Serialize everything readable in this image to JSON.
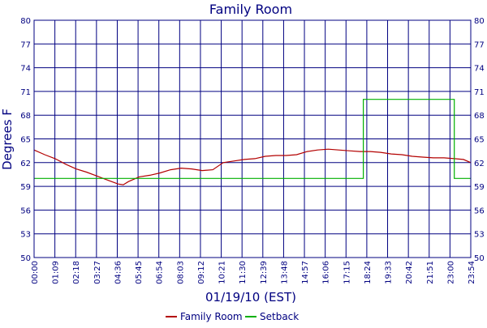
{
  "chart_data": {
    "type": "line",
    "title": "Family Room",
    "xlabel": "01/19/10 (EST)",
    "ylabel": "Degrees F",
    "ylim": [
      50,
      80
    ],
    "xlim": [
      "00:00",
      "23:54"
    ],
    "grid": true,
    "legend_position": "bottom",
    "y_ticks": [
      "50",
      "53",
      "56",
      "59",
      "62",
      "65",
      "68",
      "71",
      "74",
      "77",
      "80"
    ],
    "x_ticks": [
      "00:00",
      "01:09",
      "02:18",
      "03:27",
      "04:36",
      "05:45",
      "06:54",
      "08:03",
      "09:12",
      "10:21",
      "11:30",
      "12:39",
      "13:48",
      "14:57",
      "16:06",
      "17:15",
      "18:24",
      "19:33",
      "20:42",
      "21:51",
      "23:00",
      "23:54"
    ],
    "series": [
      {
        "name": "Family Room",
        "color": "#b30000",
        "points": [
          [
            "00:00",
            63.6
          ],
          [
            "00:35",
            63.0
          ],
          [
            "01:09",
            62.5
          ],
          [
            "01:44",
            61.8
          ],
          [
            "02:18",
            61.2
          ],
          [
            "02:52",
            60.8
          ],
          [
            "03:27",
            60.3
          ],
          [
            "04:01",
            59.8
          ],
          [
            "04:36",
            59.3
          ],
          [
            "04:53",
            59.2
          ],
          [
            "05:10",
            59.6
          ],
          [
            "05:45",
            60.2
          ],
          [
            "06:20",
            60.4
          ],
          [
            "06:54",
            60.7
          ],
          [
            "07:28",
            61.1
          ],
          [
            "08:03",
            61.3
          ],
          [
            "08:38",
            61.2
          ],
          [
            "09:12",
            61.0
          ],
          [
            "09:47",
            61.1
          ],
          [
            "10:21",
            62.0
          ],
          [
            "10:56",
            62.2
          ],
          [
            "11:30",
            62.4
          ],
          [
            "12:05",
            62.5
          ],
          [
            "12:39",
            62.8
          ],
          [
            "13:14",
            62.9
          ],
          [
            "13:48",
            62.9
          ],
          [
            "14:22",
            63.0
          ],
          [
            "14:57",
            63.4
          ],
          [
            "15:31",
            63.6
          ],
          [
            "16:06",
            63.7
          ],
          [
            "16:40",
            63.6
          ],
          [
            "17:15",
            63.5
          ],
          [
            "17:50",
            63.4
          ],
          [
            "18:24",
            63.4
          ],
          [
            "18:58",
            63.3
          ],
          [
            "19:33",
            63.1
          ],
          [
            "20:08",
            63.0
          ],
          [
            "20:42",
            62.8
          ],
          [
            "21:16",
            62.7
          ],
          [
            "21:51",
            62.6
          ],
          [
            "22:26",
            62.6
          ],
          [
            "23:00",
            62.5
          ],
          [
            "23:30",
            62.4
          ],
          [
            "23:54",
            62.0
          ]
        ]
      },
      {
        "name": "Setback",
        "color": "#00b000",
        "points": [
          [
            "00:00",
            60.0
          ],
          [
            "18:01",
            60.0
          ],
          [
            "18:01",
            70.0
          ],
          [
            "23:00",
            70.0
          ],
          [
            "23:00",
            60.0
          ],
          [
            "23:54",
            60.0
          ]
        ]
      }
    ]
  }
}
